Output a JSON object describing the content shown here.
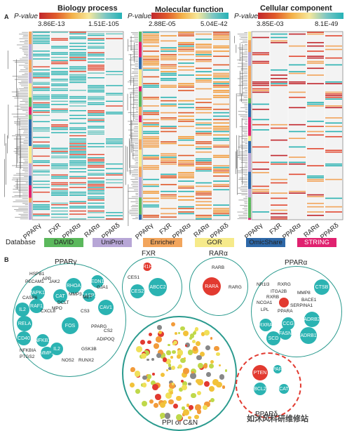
{
  "panelA": {
    "label": "A",
    "pvalue_label": "P-value",
    "panels": [
      {
        "title": "Biology process",
        "low": "3.86E-13",
        "high": "1.51E-105",
        "columns": [
          "PPARγ",
          "FXR",
          "PPARα",
          "RARα",
          "PPARδ"
        ]
      },
      {
        "title": "Molecular function",
        "low": "2.88E-05",
        "high": "5.04E-42",
        "columns": [
          "PPARγ",
          "FXR",
          "PPARα",
          "RARα",
          "PPARδ"
        ]
      },
      {
        "title": "Cellular component",
        "low": "3.85E-03",
        "high": "8.1E-49",
        "columns": [
          "PPARγ",
          "FXR",
          "PPARα",
          "RARα",
          "PPARδ"
        ]
      }
    ]
  },
  "database": {
    "label": "Database",
    "items": [
      {
        "name": "DAVID",
        "color": "#5bb85c"
      },
      {
        "name": "UniProt",
        "color": "#b7a6d6"
      },
      {
        "name": "Enricher",
        "color": "#f2a55c"
      },
      {
        "name": "GOR",
        "color": "#f6ea8a"
      },
      {
        "name": "OmicShare",
        "color": "#2e68a8"
      },
      {
        "name": "STRING",
        "color": "#e0216f"
      }
    ]
  },
  "panelB": {
    "label": "B",
    "center_title": "PPI of C&N",
    "clusters": {
      "ppar_gamma": {
        "title": "PPARγ",
        "nodes": [
          "HSPB1",
          "PECAM1",
          "APP",
          "MAPK10",
          "JAK2",
          "RHOA",
          "EDN1",
          "GJA1",
          "CASP3",
          "CASP6",
          "IL2",
          "RAF1",
          "CAT",
          "MMP3",
          "MET",
          "CAV1",
          "RELA",
          "CXCL8",
          "DCLT",
          "MPO",
          "CS3",
          "CD40",
          "NFKB1",
          "FOS",
          "PPARG",
          "CS2",
          "ADIPOQ",
          "NFKBIA",
          "PTGS2",
          "MMP1",
          "NOS2",
          "IL2",
          "GSK3B",
          "RUNX2"
        ]
      },
      "fxr": {
        "title": "FXR",
        "nodes": [
          "NR1H4",
          "CES1",
          "CES2",
          "ABCC2"
        ]
      },
      "rar_alpha": {
        "title": "RARα",
        "nodes": [
          "RARB",
          "RARA",
          "RARG"
        ]
      },
      "ppar_alpha": {
        "title": "PPARα",
        "nodes": [
          "NR1I3",
          "RXRG",
          "ITGA2B",
          "CTSB",
          "RXRB",
          "MMP8",
          "BACE1",
          "NCOA1",
          "SERPINA1",
          "LPL",
          "PPARA",
          "CCG",
          "RXRA",
          "FASN",
          "ADRB2",
          "SCD",
          "ADRB1"
        ]
      },
      "ppar_delta": {
        "title": "PPARδ",
        "nodes": [
          "PTEN",
          "PPARD",
          "BCL2",
          "CAT"
        ]
      }
    }
  },
  "watermark": {
    "text": "如沐风科研维修站"
  }
}
